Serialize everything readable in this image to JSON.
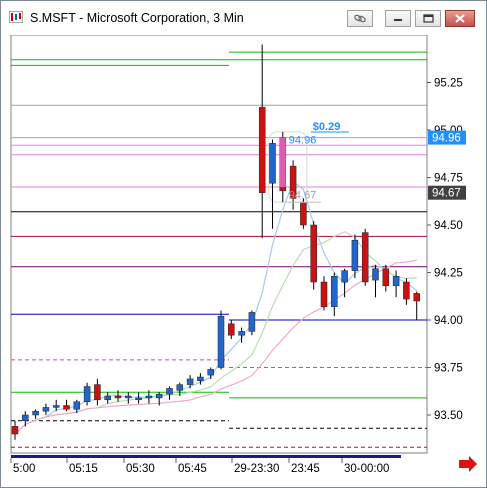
{
  "window": {
    "title": "S.MSFT - Microsoft Corporation, 3 Min",
    "buttons": [
      "link-icon",
      "minimize-icon",
      "restore-icon",
      "close-icon"
    ]
  },
  "chart_data": {
    "type": "candlestick",
    "price_axis": {
      "ticks": [
        "95.25",
        "95.00",
        "94.75",
        "94.50",
        "94.25",
        "94.00",
        "93.75",
        "93.50"
      ],
      "tick_values": [
        95.25,
        95.0,
        94.75,
        94.5,
        94.25,
        94.0,
        93.75,
        93.5
      ],
      "range": [
        93.3,
        95.5
      ],
      "price_flags": [
        {
          "label": "94.96",
          "value": 94.96,
          "color": "#1e90ff"
        },
        {
          "label": "94.67",
          "value": 94.67,
          "color": "#404040"
        }
      ]
    },
    "time_axis": {
      "labels": [
        "5:00",
        "05:15",
        "05:30",
        "05:45",
        "29-23:30",
        "23:45",
        "30-00:00"
      ]
    },
    "candles": [
      {
        "o": 93.44,
        "h": 93.47,
        "l": 93.37,
        "c": 93.4
      },
      {
        "o": 93.47,
        "h": 93.52,
        "l": 93.44,
        "c": 93.5
      },
      {
        "o": 93.5,
        "h": 93.53,
        "l": 93.48,
        "c": 93.52
      },
      {
        "o": 93.52,
        "h": 93.56,
        "l": 93.5,
        "c": 93.54
      },
      {
        "o": 93.54,
        "h": 93.58,
        "l": 93.52,
        "c": 93.55
      },
      {
        "o": 93.55,
        "h": 93.58,
        "l": 93.52,
        "c": 93.53
      },
      {
        "o": 93.53,
        "h": 93.58,
        "l": 93.51,
        "c": 93.57
      },
      {
        "o": 93.57,
        "h": 93.67,
        "l": 93.55,
        "c": 93.65
      },
      {
        "o": 93.66,
        "h": 93.69,
        "l": 93.55,
        "c": 93.58
      },
      {
        "o": 93.58,
        "h": 93.62,
        "l": 93.56,
        "c": 93.6
      },
      {
        "o": 93.6,
        "h": 93.63,
        "l": 93.57,
        "c": 93.59
      },
      {
        "o": 93.59,
        "h": 93.62,
        "l": 93.56,
        "c": 93.6
      },
      {
        "o": 93.58,
        "h": 93.62,
        "l": 93.56,
        "c": 93.59
      },
      {
        "o": 93.59,
        "h": 93.63,
        "l": 93.56,
        "c": 93.6
      },
      {
        "o": 93.59,
        "h": 93.62,
        "l": 93.55,
        "c": 93.61
      },
      {
        "o": 93.61,
        "h": 93.65,
        "l": 93.58,
        "c": 93.64
      },
      {
        "o": 93.63,
        "h": 93.67,
        "l": 93.6,
        "c": 93.66
      },
      {
        "o": 93.66,
        "h": 93.71,
        "l": 93.64,
        "c": 93.69
      },
      {
        "o": 93.68,
        "h": 93.72,
        "l": 93.66,
        "c": 93.7
      },
      {
        "o": 93.71,
        "h": 93.75,
        "l": 93.69,
        "c": 93.74
      },
      {
        "o": 93.75,
        "h": 94.05,
        "l": 93.74,
        "c": 94.02
      },
      {
        "o": 93.98,
        "h": 94.0,
        "l": 93.9,
        "c": 93.92
      },
      {
        "o": 93.92,
        "h": 93.96,
        "l": 93.88,
        "c": 93.94
      },
      {
        "o": 93.94,
        "h": 94.05,
        "l": 93.92,
        "c": 94.04
      },
      {
        "o": 95.12,
        "h": 95.45,
        "l": 94.43,
        "c": 94.67
      },
      {
        "o": 94.72,
        "h": 94.95,
        "l": 94.48,
        "c": 94.93
      },
      {
        "o": 94.96,
        "h": 94.99,
        "l": 94.62,
        "c": 94.68
      },
      {
        "o": 94.81,
        "h": 94.84,
        "l": 94.58,
        "c": 94.64
      },
      {
        "o": 94.62,
        "h": 94.64,
        "l": 94.48,
        "c": 94.5
      },
      {
        "o": 94.5,
        "h": 94.52,
        "l": 94.16,
        "c": 94.2
      },
      {
        "o": 94.2,
        "h": 94.23,
        "l": 94.05,
        "c": 94.07
      },
      {
        "o": 94.07,
        "h": 94.25,
        "l": 94.02,
        "c": 94.23
      },
      {
        "o": 94.2,
        "h": 94.27,
        "l": 94.12,
        "c": 94.26
      },
      {
        "o": 94.26,
        "h": 94.45,
        "l": 94.22,
        "c": 94.42
      },
      {
        "o": 94.46,
        "h": 94.48,
        "l": 94.18,
        "c": 94.2
      },
      {
        "o": 94.21,
        "h": 94.29,
        "l": 94.12,
        "c": 94.27
      },
      {
        "o": 94.27,
        "h": 94.29,
        "l": 94.15,
        "c": 94.18
      },
      {
        "o": 94.18,
        "h": 94.26,
        "l": 94.12,
        "c": 94.23
      },
      {
        "o": 94.2,
        "h": 94.22,
        "l": 94.08,
        "c": 94.11
      },
      {
        "o": 94.14,
        "h": 94.15,
        "l": 94.0,
        "c": 94.1
      }
    ],
    "horizontal_levels": [
      {
        "y": 95.41,
        "color": "#00c000",
        "seg": "right"
      },
      {
        "y": 95.37,
        "color": "#00c000",
        "seg": "all"
      },
      {
        "y": 95.34,
        "color": "#00c000",
        "seg": "left"
      },
      {
        "y": 95.13,
        "color": "#a0a0a0",
        "seg": "all"
      },
      {
        "y": 94.96,
        "color": "#e080e0",
        "seg": "all"
      },
      {
        "y": 94.92,
        "color": "#e080e0",
        "seg": "all"
      },
      {
        "y": 94.87,
        "color": "#e080e0",
        "seg": "all"
      },
      {
        "y": 94.7,
        "color": "#e080e0",
        "seg": "all"
      },
      {
        "y": 94.57,
        "color": "#000000",
        "seg": "all"
      },
      {
        "y": 94.44,
        "color": "#a01030",
        "seg": "all"
      },
      {
        "y": 94.28,
        "color": "#700070",
        "seg": "all"
      },
      {
        "y": 94.03,
        "color": "#0000c0",
        "seg": "left"
      },
      {
        "y": 94.0,
        "color": "#0000c0",
        "seg": "right"
      },
      {
        "y": 93.75,
        "color": "#d040d0",
        "seg": "dash-right"
      },
      {
        "y": 93.79,
        "color": "#d040d0",
        "seg": "dash-left"
      },
      {
        "y": 93.59,
        "color": "#00c000",
        "seg": "right"
      },
      {
        "y": 93.62,
        "color": "#00c000",
        "seg": "left"
      },
      {
        "y": 93.47,
        "color": "#000000",
        "seg": "dash-left"
      },
      {
        "y": 93.43,
        "color": "#000000",
        "seg": "dash-right"
      },
      {
        "y": 93.33,
        "color": "#c01010",
        "seg": "dash-all"
      }
    ],
    "annotations": [
      {
        "text": "$0.29",
        "color": "#1e90ff"
      },
      {
        "text": "94.96",
        "color": "#1e90ff"
      },
      {
        "text": "94.67",
        "color": "#a0a0a0"
      }
    ],
    "colors": {
      "up": "#2266cc",
      "down": "#cc1111",
      "grid": "#dddddd"
    }
  }
}
